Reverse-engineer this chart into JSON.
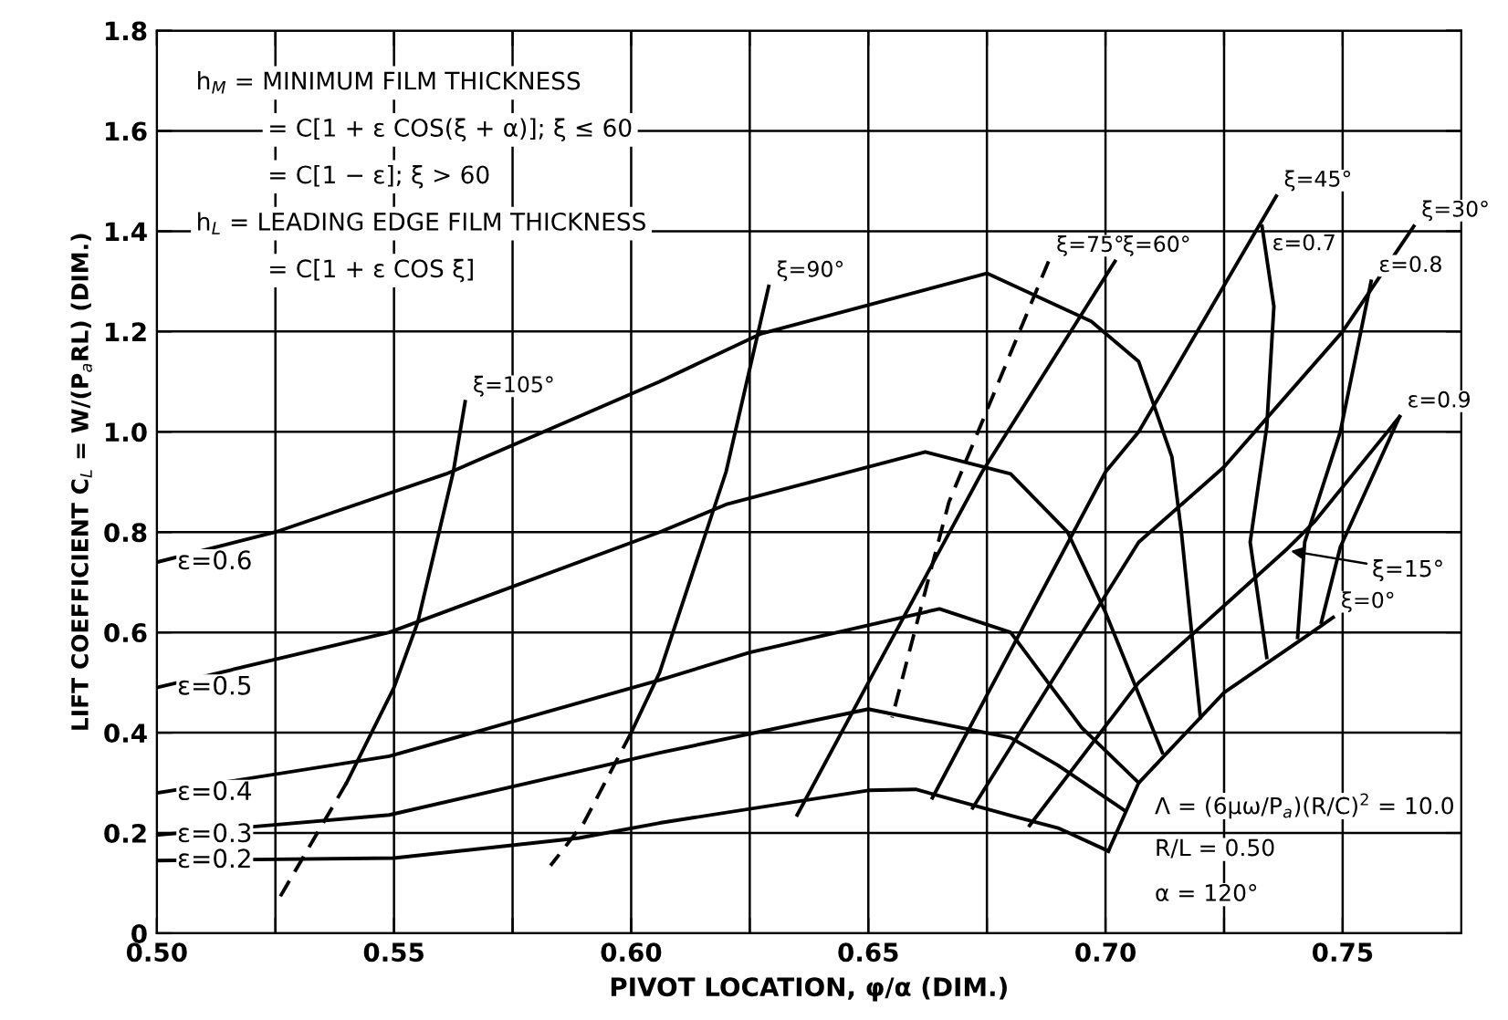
{
  "chart_data": {
    "type": "line",
    "xlabel": "PIVOT LOCATION, φ/α (DIM.)",
    "ylabel": "LIFT COEFFICIENT C$_{L}$ = W/(P$_{a}$RL) (DIM.)",
    "xlim": [
      0.5,
      0.775
    ],
    "ylim": [
      0,
      1.8
    ],
    "xticks": [
      {
        "value": 0.5,
        "label": "0.50"
      },
      {
        "value": 0.525,
        "label": null
      },
      {
        "value": 0.55,
        "label": "0.55"
      },
      {
        "value": 0.575,
        "label": null
      },
      {
        "value": 0.6,
        "label": "0.60"
      },
      {
        "value": 0.625,
        "label": null
      },
      {
        "value": 0.65,
        "label": "0.65"
      },
      {
        "value": 0.675,
        "label": null
      },
      {
        "value": 0.7,
        "label": "0.70"
      },
      {
        "value": 0.725,
        "label": null
      },
      {
        "value": 0.75,
        "label": "0.75"
      }
    ],
    "yticks": [
      0,
      0.2,
      0.4,
      0.6,
      0.8,
      {
        "value": 1,
        "label": "1.0"
      },
      1.2,
      1.4,
      1.6,
      1.8
    ],
    "grid": true,
    "marker": "none",
    "series": [
      {
        "name": "ε=0.2",
        "color": "#000000",
        "line_style": "solid",
        "x": [
          0.5,
          0.55,
          0.589,
          0.606,
          0.65,
          0.66,
          0.68,
          0.69,
          0.7006
        ],
        "values": [
          0.145,
          0.15,
          0.19,
          0.22,
          0.285,
          0.287,
          0.235,
          0.21,
          0.164
        ]
      },
      {
        "name": "ε=0.3",
        "color": "#000000",
        "line_style": "solid",
        "x": [
          0.5,
          0.549,
          0.606,
          0.65,
          0.68,
          0.69,
          0.704
        ],
        "values": [
          0.196,
          0.236,
          0.36,
          0.447,
          0.39,
          0.335,
          0.245
        ]
      },
      {
        "name": "ε=0.4",
        "color": "#000000",
        "line_style": "solid",
        "x": [
          0.5,
          0.549,
          0.606,
          0.625,
          0.665,
          0.68,
          0.695,
          0.707
        ],
        "values": [
          0.28,
          0.353,
          0.505,
          0.56,
          0.647,
          0.6,
          0.41,
          0.3
        ]
      },
      {
        "name": "ε=0.5",
        "color": "#000000",
        "line_style": "solid",
        "x": [
          0.5,
          0.549,
          0.606,
          0.62,
          0.662,
          0.68,
          0.692,
          0.7,
          0.712
        ],
        "values": [
          0.49,
          0.6,
          0.8,
          0.855,
          0.96,
          0.916,
          0.8,
          0.64,
          0.36
        ]
      },
      {
        "name": "ε=0.6",
        "color": "#000000",
        "line_style": "solid",
        "x": [
          0.5,
          0.525,
          0.561,
          0.606,
          0.6275,
          0.675,
          0.697,
          0.707,
          0.714,
          0.716,
          0.72
        ],
        "values": [
          0.74,
          0.8,
          0.916,
          1.1,
          1.196,
          1.316,
          1.22,
          1.14,
          0.95,
          0.8,
          0.43
        ]
      },
      {
        "name": "ε=0.7",
        "color": "#000000",
        "line_style": "solid",
        "x": [
          0.733,
          0.7355,
          0.734,
          0.7305,
          0.734
        ],
        "values": [
          1.41,
          1.25,
          1.01,
          0.78,
          0.55
        ]
      },
      {
        "name": "ε=0.8",
        "color": "#000000",
        "line_style": "solid",
        "x": [
          0.756,
          0.7495,
          0.742,
          0.7405
        ],
        "values": [
          1.3,
          1.0,
          0.78,
          0.59
        ]
      },
      {
        "name": "ε=0.9",
        "color": "#000000",
        "line_style": "solid",
        "x": [
          0.762,
          0.7495,
          0.7455
        ],
        "values": [
          1.03,
          0.77,
          0.62
        ]
      },
      {
        "color": "#000000",
        "line_style": "dashed",
        "x": [
          0.54,
          0.526
        ],
        "values": [
          0.3,
          0.073
        ]
      },
      {
        "name": "ξ=105°",
        "color": "#000000",
        "line_style": "solid",
        "x": [
          0.565,
          0.5625,
          0.555,
          0.55,
          0.54
        ],
        "values": [
          1.06,
          0.92,
          0.62,
          0.49,
          0.3
        ]
      },
      {
        "color": "#000000",
        "line_style": "dashed",
        "x": [
          0.6,
          0.59,
          0.583
        ],
        "values": [
          0.4,
          0.22,
          0.135
        ]
      },
      {
        "name": "ξ=90°",
        "color": "#000000",
        "line_style": "solid",
        "x": [
          0.629,
          0.62,
          0.606,
          0.6
        ],
        "values": [
          1.29,
          0.92,
          0.52,
          0.4
        ]
      },
      {
        "name": "ξ=75°",
        "color": "#000000",
        "line_style": "dashed",
        "x": [
          0.688,
          0.667,
          0.6625,
          0.655
        ],
        "values": [
          1.34,
          0.86,
          0.7,
          0.43
        ]
      },
      {
        "name": "ξ=60°",
        "color": "#000000",
        "line_style": "solid",
        "x": [
          0.702,
          0.674,
          0.65,
          0.635
        ],
        "values": [
          1.34,
          0.92,
          0.5,
          0.236
        ]
      },
      {
        "name": "ξ=45°",
        "color": "#000000",
        "line_style": "solid",
        "x": [
          0.736,
          0.707,
          0.7,
          0.6635
        ],
        "values": [
          1.47,
          1.0,
          0.92,
          0.27
        ]
      },
      {
        "name": "ξ=30°",
        "color": "#000000",
        "line_style": "solid",
        "x": [
          0.765,
          0.75,
          0.725,
          0.707,
          0.672
        ],
        "values": [
          1.41,
          1.2,
          0.93,
          0.78,
          0.25
        ]
      },
      {
        "color": "#000000",
        "line_style": "solid",
        "x": [
          0.684,
          0.707,
          0.738,
          0.744,
          0.762
        ],
        "values": [
          0.215,
          0.5,
          0.764,
          0.82,
          1.03
        ]
      },
      {
        "name": "ξ=0°",
        "color": "#000000",
        "line_style": "solid",
        "x": [
          0.748,
          0.7435,
          0.725,
          0.707,
          0.7006
        ],
        "values": [
          0.63,
          0.6,
          0.48,
          0.3,
          0.164
        ]
      }
    ],
    "annotations": [
      {
        "text": "ξ=15°",
        "x": 0.738,
        "y": 0.764
      },
      "h$_{M}$ = MINIMUM FILM THICKNESS",
      "= C[1 + ε COS(ξ + α)]; ξ ≤ 60",
      "= C[1 − ε]; ξ > 60",
      "h$_{L}$ = LEADING EDGE FILM THICKNESS",
      "= C[1 + ε COS ξ]",
      "Λ = (6μω/P$_{a}$)(R/C)$^{2}$ = 10.0",
      "R/L = 0.50",
      "α = 120°"
    ]
  }
}
